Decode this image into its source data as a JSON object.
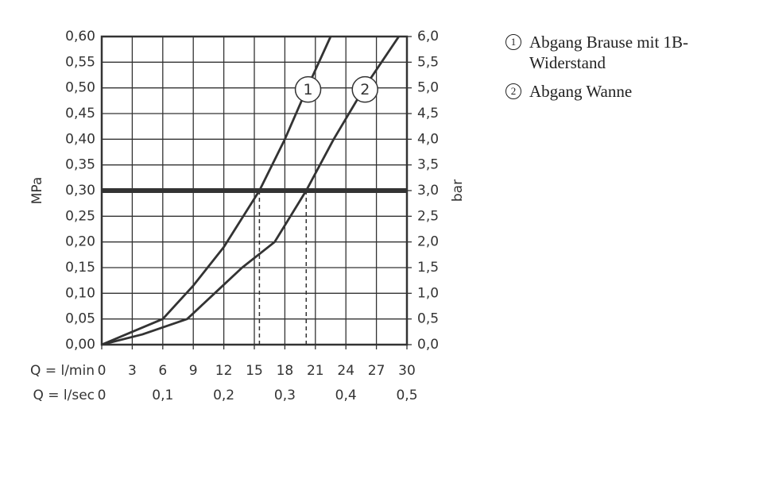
{
  "chart_data": {
    "type": "line",
    "ylabel": "MPa",
    "y2label": "bar",
    "xlabel": "Q = l/min",
    "x2label": "Q = l/sec",
    "xlim": [
      0,
      30
    ],
    "xticks": [
      0,
      3,
      6,
      9,
      12,
      15,
      18,
      21,
      24,
      27,
      30
    ],
    "x2lim": [
      0,
      0.5
    ],
    "x2ticks": [
      0,
      {
        "value": 0.1,
        "label": "0,1"
      },
      {
        "value": 0.2,
        "label": "0,2"
      },
      {
        "value": 0.3,
        "label": "0,3"
      },
      {
        "value": 0.4,
        "label": "0,4"
      },
      {
        "value": 0.5,
        "label": "0,5"
      }
    ],
    "ylim": [
      0,
      0.6
    ],
    "yticks": [
      {
        "value": 0,
        "label": "0,00"
      },
      {
        "value": 0.05,
        "label": "0,05"
      },
      {
        "value": 0.1,
        "label": "0,10"
      },
      {
        "value": 0.15,
        "label": "0,15"
      },
      {
        "value": 0.2,
        "label": "0,20"
      },
      {
        "value": 0.25,
        "label": "0,25"
      },
      {
        "value": 0.3,
        "label": "0,30"
      },
      {
        "value": 0.35,
        "label": "0,35"
      },
      {
        "value": 0.4,
        "label": "0,40"
      },
      {
        "value": 0.45,
        "label": "0,45"
      },
      {
        "value": 0.5,
        "label": "0,50"
      },
      {
        "value": 0.55,
        "label": "0,55"
      },
      {
        "value": 0.6,
        "label": "0,60"
      }
    ],
    "y2lim": [
      0,
      6
    ],
    "y2ticks": [
      {
        "value": 0,
        "label": "0,0"
      },
      {
        "value": 0.5,
        "label": "0,5"
      },
      {
        "value": 1,
        "label": "1,0"
      },
      {
        "value": 1.5,
        "label": "1,5"
      },
      {
        "value": 2,
        "label": "2,0"
      },
      {
        "value": 2.5,
        "label": "2,5"
      },
      {
        "value": 3,
        "label": "3,0"
      },
      {
        "value": 3.5,
        "label": "3,5"
      },
      {
        "value": 4,
        "label": "4,0"
      },
      {
        "value": 4.5,
        "label": "4,5"
      },
      {
        "value": 5,
        "label": "5,0"
      },
      {
        "value": 5.5,
        "label": "5,5"
      },
      {
        "value": 6,
        "label": "6,0"
      }
    ],
    "grid": true,
    "reference_line": 0.3,
    "markers_x": [
      15.5,
      20.1
    ],
    "series": [
      {
        "name": "Abgang Brause mit 1B-Widerstand",
        "label": "1",
        "color": "#333333",
        "x": [
          0,
          3,
          6,
          9,
          12,
          15.5,
          18,
          20.2,
          22.5
        ],
        "values": [
          0,
          0.025,
          0.05,
          0.115,
          0.19,
          0.3,
          0.4,
          0.5,
          0.6
        ]
      },
      {
        "name": "Abgang Wanne",
        "label": "2",
        "color": "#333333",
        "x": [
          0,
          4,
          8.4,
          11.1,
          13.8,
          17,
          20.1,
          22.8,
          25.8,
          29.2
        ],
        "values": [
          0,
          0.02,
          0.05,
          0.1,
          0.15,
          0.2,
          0.3,
          0.4,
          0.5,
          0.6
        ]
      }
    ]
  }
}
